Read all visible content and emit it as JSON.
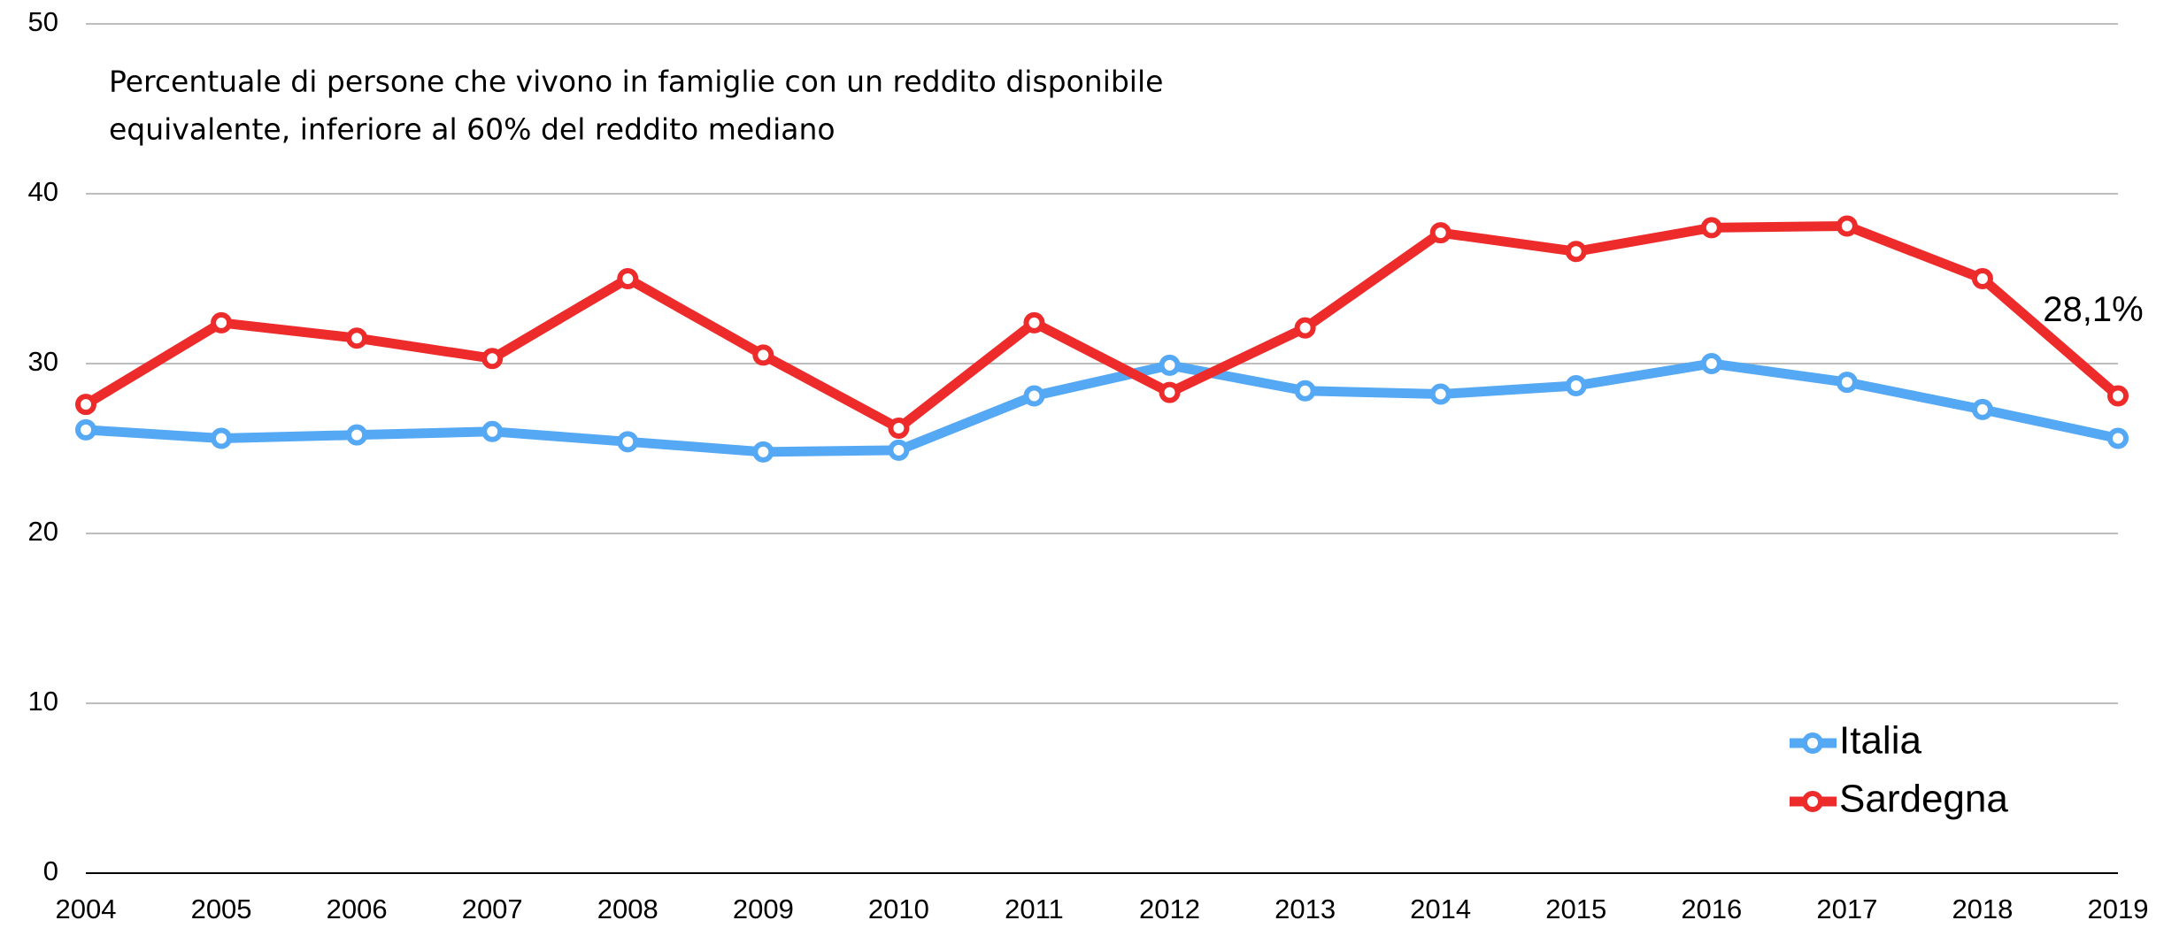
{
  "chart_data": {
    "type": "line",
    "title": [
      "Percentuale di persone che vivono in famiglie con un reddito disponibile",
      "equivalente, inferiore al 60% del reddito mediano"
    ],
    "x": [
      2004,
      2005,
      2006,
      2007,
      2008,
      2009,
      2010,
      2011,
      2012,
      2013,
      2014,
      2015,
      2016,
      2017,
      2018,
      2019
    ],
    "xlim": [
      2004,
      2019
    ],
    "xticks": [
      2004,
      2005,
      2006,
      2007,
      2008,
      2009,
      2010,
      2011,
      2012,
      2013,
      2014,
      2015,
      2016,
      2017,
      2018,
      2019
    ],
    "ylim": [
      0,
      50
    ],
    "yticks": [
      0,
      10,
      20,
      30,
      40,
      50
    ],
    "grid": true,
    "legend": "lower right",
    "series": [
      {
        "name": "Italia",
        "color": "#55a8f4",
        "values": [
          26.1,
          25.6,
          25.8,
          26.0,
          25.4,
          24.8,
          24.9,
          28.1,
          29.9,
          28.4,
          28.2,
          28.7,
          30.0,
          28.9,
          27.3,
          25.6
        ]
      },
      {
        "name": "Sardegna",
        "color": "#ee2b2b",
        "values": [
          27.6,
          32.4,
          31.5,
          30.3,
          35.0,
          30.5,
          26.2,
          32.4,
          28.3,
          32.1,
          37.7,
          36.6,
          38.0,
          38.1,
          35.0,
          28.1
        ],
        "value_labels": [
          null,
          null,
          null,
          null,
          null,
          null,
          null,
          null,
          null,
          null,
          null,
          null,
          null,
          null,
          null,
          "28,1%"
        ]
      }
    ]
  }
}
